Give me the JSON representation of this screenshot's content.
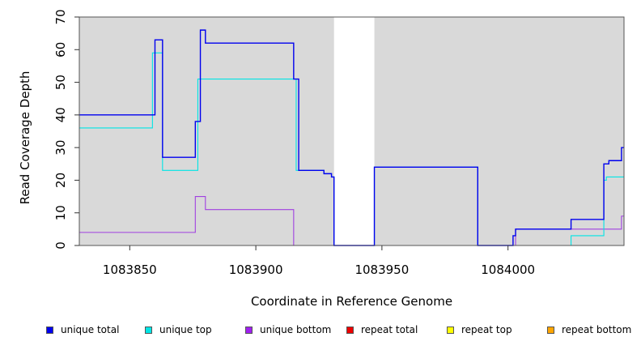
{
  "chart_data": {
    "type": "line",
    "title": "",
    "xlabel": "Coordinate in Reference Genome",
    "ylabel": "Read Coverage Depth",
    "xlim": [
      1083830,
      1084046
    ],
    "ylim": [
      0,
      70
    ],
    "x_ticks": [
      1083850,
      1083900,
      1083950,
      1084000
    ],
    "x_tick_labels": [
      "1083850",
      "1083900",
      "1083950",
      "1084000"
    ],
    "y_ticks": [
      0,
      10,
      20,
      30,
      40,
      50,
      60,
      70
    ],
    "y_tick_labels": [
      "0",
      "10",
      "20",
      "30",
      "40",
      "50",
      "60",
      "70"
    ],
    "grid": false,
    "background_color": "#d9d9d9",
    "unshaded_regions": [
      [
        1083931,
        1083947
      ]
    ],
    "legend_position": "bottom",
    "series": [
      {
        "name": "unique total",
        "color": "#0000ee",
        "step_points": [
          [
            1083830,
            40
          ],
          [
            1083860,
            63
          ],
          [
            1083863,
            27
          ],
          [
            1083876,
            38
          ],
          [
            1083878,
            66
          ],
          [
            1083880,
            62
          ],
          [
            1083915,
            51
          ],
          [
            1083917,
            23
          ],
          [
            1083927,
            22
          ],
          [
            1083930,
            21
          ],
          [
            1083931,
            0
          ],
          [
            1083947,
            24
          ],
          [
            1083988,
            0
          ],
          [
            1084002,
            3
          ],
          [
            1084003,
            5
          ],
          [
            1084025,
            8
          ],
          [
            1084038,
            25
          ],
          [
            1084040,
            26
          ],
          [
            1084045,
            30
          ],
          [
            1084046,
            30
          ]
        ]
      },
      {
        "name": "unique top",
        "color": "#00e5e5",
        "step_points": [
          [
            1083830,
            36
          ],
          [
            1083859,
            59
          ],
          [
            1083863,
            23
          ],
          [
            1083877,
            51
          ],
          [
            1083916,
            23
          ],
          [
            1083927,
            22
          ],
          [
            1083930,
            21
          ],
          [
            1083931,
            0
          ],
          [
            1083947,
            24
          ],
          [
            1083988,
            0
          ],
          [
            1084025,
            3
          ],
          [
            1084038,
            20
          ],
          [
            1084039,
            21
          ],
          [
            1084046,
            21
          ]
        ]
      },
      {
        "name": "unique bottom",
        "color": "#a040e0",
        "step_points": [
          [
            1083830,
            4
          ],
          [
            1083876,
            15
          ],
          [
            1083880,
            11
          ],
          [
            1083915,
            0
          ],
          [
            1084003,
            5
          ],
          [
            1084045,
            9
          ],
          [
            1084046,
            9
          ]
        ]
      },
      {
        "name": "repeat total",
        "color": "#ee0000",
        "step_points": [
          [
            1083830,
            0
          ],
          [
            1084046,
            0
          ]
        ]
      },
      {
        "name": "repeat top",
        "color": "#eeee00",
        "step_points": [
          [
            1083830,
            0
          ],
          [
            1084046,
            0
          ]
        ]
      },
      {
        "name": "repeat bottom",
        "color": "#ee9a00",
        "step_points": [
          [
            1083830,
            0
          ],
          [
            1084046,
            0
          ]
        ]
      }
    ]
  },
  "legend": {
    "items": [
      {
        "label": "unique total",
        "color": "#0000ee"
      },
      {
        "label": "unique top",
        "color": "#00e5e5"
      },
      {
        "label": "unique bottom",
        "color": "#a020f0"
      },
      {
        "label": "repeat total",
        "color": "#ee0000"
      },
      {
        "label": "repeat top",
        "color": "#ffff00"
      },
      {
        "label": "repeat bottom",
        "color": "#ffa500"
      }
    ]
  }
}
